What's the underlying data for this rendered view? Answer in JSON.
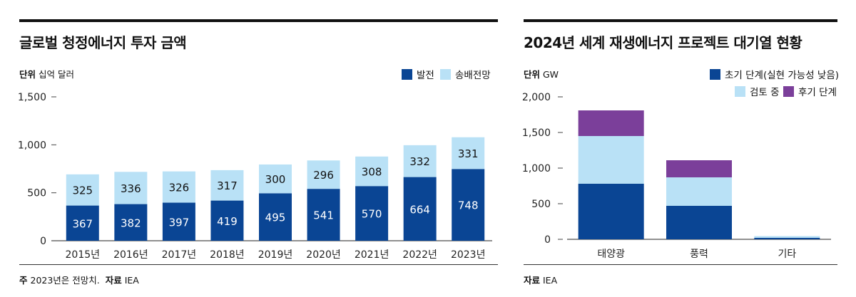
{
  "left": {
    "title": "글로벌 청정에너지 투자 금액",
    "unit_label": "단위",
    "unit_value": "십억 달러",
    "note_label": "주",
    "note_text": "2023년은 전망치.",
    "source_label": "자료",
    "source_text": "IEA"
  },
  "right": {
    "title": "2024년 세계 재생에너지 프로젝트 대기열 현황",
    "unit_label": "단위",
    "unit_value": "GW",
    "source_label": "자료",
    "source_text": "IEA"
  },
  "colors": {
    "dark_blue": "#0a4594",
    "light_blue": "#b9e1f6",
    "purple": "#7b3f9a"
  },
  "chart_data": [
    {
      "type": "bar",
      "stacked": true,
      "title": "글로벌 청정에너지 투자 금액",
      "ylabel": "십억 달러",
      "ylim": [
        0,
        1500
      ],
      "yticks": [
        0,
        500,
        1000,
        1500
      ],
      "ytick_labels": [
        "0",
        "500",
        "1,000",
        "1,500"
      ],
      "categories": [
        "2015년",
        "2016년",
        "2017년",
        "2018년",
        "2019년",
        "2020년",
        "2021년",
        "2022년",
        "2023년"
      ],
      "series": [
        {
          "name": "발전",
          "color": "#0a4594",
          "values": [
            367,
            382,
            397,
            419,
            495,
            541,
            570,
            664,
            748
          ]
        },
        {
          "name": "송배전망",
          "color": "#b9e1f6",
          "values": [
            325,
            336,
            326,
            317,
            300,
            296,
            308,
            332,
            331
          ]
        }
      ],
      "legend": "top-right",
      "data_labels": true
    },
    {
      "type": "bar",
      "stacked": true,
      "title": "2024년 세계 재생에너지 프로젝트 대기열 현황",
      "ylabel": "GW",
      "ylim": [
        0,
        2000
      ],
      "yticks": [
        0,
        500,
        1000,
        1500,
        2000
      ],
      "ytick_labels": [
        "0",
        "500",
        "1,000",
        "1,500",
        "2,000"
      ],
      "categories": [
        "태양광",
        "풍력",
        "기타"
      ],
      "series": [
        {
          "name": "초기 단계(실현 가능성 낮음)",
          "color": "#0a4594",
          "values": [
            780,
            470,
            20
          ]
        },
        {
          "name": "검토 중",
          "color": "#b9e1f6",
          "values": [
            670,
            400,
            25
          ]
        },
        {
          "name": "후기 단계",
          "color": "#7b3f9a",
          "values": [
            360,
            240,
            0
          ]
        }
      ],
      "legend": "top-right",
      "data_labels": false
    }
  ]
}
